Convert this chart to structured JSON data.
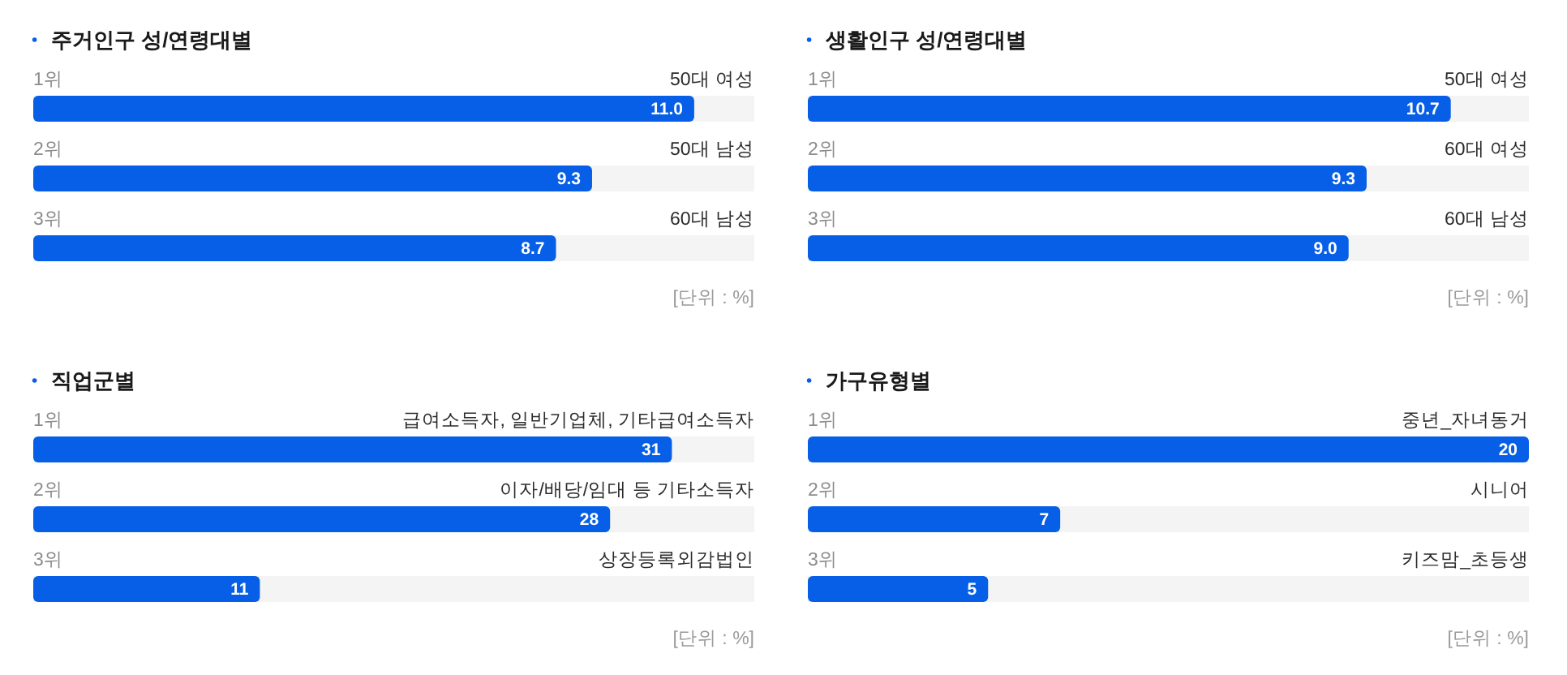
{
  "chart_data": [
    {
      "type": "bar",
      "orientation": "horizontal",
      "title": "주거인구 성/연령대별",
      "categories": [
        "50대 여성",
        "50대 남성",
        "60대 남성"
      ],
      "values": [
        11.0,
        9.3,
        8.7
      ],
      "value_labels": [
        "11.0",
        "9.3",
        "8.7"
      ],
      "color": "#065fe6",
      "xlim": [
        0,
        12
      ],
      "tick_labels": "y",
      "bands": [
        {
          "axis": "x",
          "from": 0,
          "to": 12,
          "color": "#f4f4f4"
        }
      ],
      "annotations": [
        "1위",
        "2위",
        "3위",
        "[단위 : %]"
      ]
    },
    {
      "type": "bar",
      "orientation": "horizontal",
      "title": "생활인구 성/연령대별",
      "categories": [
        "50대 여성",
        "60대 여성",
        "60대 남성"
      ],
      "values": [
        10.7,
        9.3,
        9.0
      ],
      "value_labels": [
        "10.7",
        "9.3",
        "9.0"
      ],
      "color": "#065fe6",
      "xlim": [
        0,
        12
      ],
      "tick_labels": "y",
      "bands": [
        {
          "axis": "x",
          "from": 0,
          "to": 12,
          "color": "#f4f4f4"
        }
      ],
      "annotations": [
        "1위",
        "2위",
        "3위",
        "[단위 : %]"
      ]
    },
    {
      "type": "bar",
      "orientation": "horizontal",
      "title": "직업군별",
      "categories": [
        "급여소득자, 일반기업체, 기타급여소득자",
        "이자/배당/임대 등 기타소득자",
        "상장등록외감법인"
      ],
      "values": [
        31,
        28,
        11
      ],
      "data_labels": true,
      "color": "#065fe6",
      "xlim": [
        0,
        35
      ],
      "tick_labels": "y",
      "bands": [
        {
          "axis": "x",
          "from": 0,
          "to": 35,
          "color": "#f4f4f4"
        }
      ],
      "annotations": [
        "1위",
        "2위",
        "3위",
        "[단위 : %]"
      ]
    },
    {
      "type": "bar",
      "orientation": "horizontal",
      "title": "가구유형별",
      "categories": [
        "중년_자녀동거",
        "시니어",
        "키즈맘_초등생"
      ],
      "values": [
        20,
        7,
        5
      ],
      "data_labels": true,
      "color": "#065fe6",
      "xlim": [
        0,
        20
      ],
      "tick_labels": "y",
      "bands": [
        {
          "axis": "x",
          "from": 0,
          "to": 20,
          "color": "#f4f4f4"
        }
      ],
      "annotations": [
        "1위",
        "2위",
        "3위",
        "[단위 : %]"
      ]
    }
  ]
}
